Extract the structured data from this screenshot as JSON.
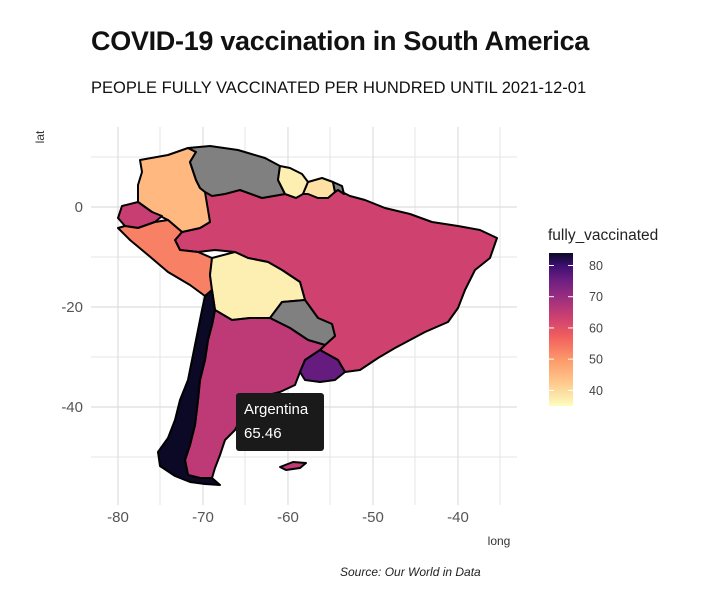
{
  "title": "COVID-19 vaccination in South America",
  "subtitle": "PEOPLE FULLY VACCINATED PER HUNDRED UNTIL 2021-12-01",
  "source": "Source: Our World in Data",
  "chart_data": {
    "type": "choropleth",
    "title": "COVID-19 vaccination in South America",
    "subtitle": "PEOPLE FULLY VACCINATED PER HUNDRED UNTIL 2021-12-01",
    "xlabel": "long",
    "ylabel": "lat",
    "x_ticks": [
      -80,
      -70,
      -60,
      -50,
      -40
    ],
    "x_tick_labels": [
      "-80",
      "-70",
      "-60",
      "-50",
      "-40"
    ],
    "y_ticks": [
      0,
      -20,
      -40
    ],
    "y_tick_labels": [
      "0",
      "-20",
      "-40"
    ],
    "xlim": [
      -83.5,
      -32
    ],
    "ylim": [
      -57,
      13
    ],
    "grid": true,
    "legend": {
      "title": "fully_vaccinated",
      "position": "right",
      "ticks": [
        80,
        70,
        60,
        50,
        40
      ],
      "tick_labels": [
        "80",
        "70",
        "60",
        "50",
        "40"
      ],
      "range": [
        35,
        84
      ],
      "palette": "magma"
    },
    "regions": [
      {
        "name": "Colombia",
        "value": 45
      },
      {
        "name": "Venezuela",
        "value": null
      },
      {
        "name": "Guyana",
        "value": 37
      },
      {
        "name": "Suriname",
        "value": 39
      },
      {
        "name": "French Guiana",
        "value": null
      },
      {
        "name": "Ecuador",
        "value": 64
      },
      {
        "name": "Peru",
        "value": 53
      },
      {
        "name": "Brazil",
        "value": 63
      },
      {
        "name": "Bolivia",
        "value": 37
      },
      {
        "name": "Paraguay",
        "value": null
      },
      {
        "name": "Uruguay",
        "value": 76
      },
      {
        "name": "Chile",
        "value": 84
      },
      {
        "name": "Argentina",
        "value": 65.46
      },
      {
        "name": "Falkland Islands",
        "value": 65
      }
    ],
    "tooltip": {
      "region": "Argentina",
      "label": "Argentina",
      "value": "65.46"
    }
  },
  "colors": {
    "missing": "#808080",
    "border": "#000000",
    "grid": "#e6e6e6",
    "tooltip_bg": "#1a1a1a"
  }
}
